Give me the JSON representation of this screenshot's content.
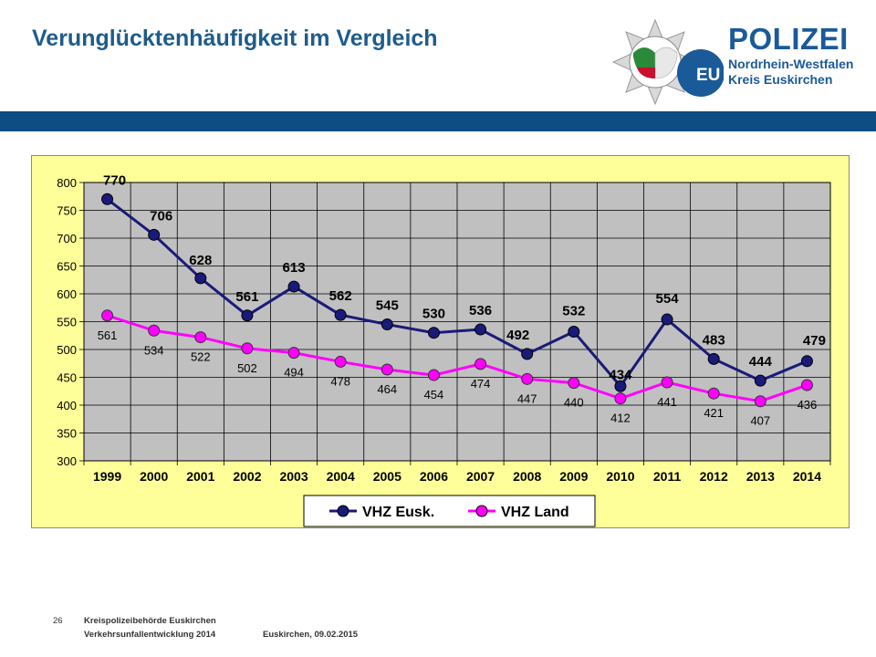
{
  "slide": {
    "title": "Verunglücktenhäufigkeit im Vergleich"
  },
  "logo": {
    "brand": "POLIZEI",
    "line1": "Nordrhein-Westfalen",
    "line2": "Kreis Euskirchen",
    "emblem_text": "EU"
  },
  "colors": {
    "title": "#1f5c8b",
    "header_bar": "#0e4c84",
    "chart_background": "#ffff99",
    "plot_background": "#c0c0c0",
    "series_eusk": "#1a1a7a",
    "series_land": "#ff00ff"
  },
  "chart_data": {
    "type": "line",
    "categories": [
      "1999",
      "2000",
      "2001",
      "2002",
      "2003",
      "2004",
      "2005",
      "2006",
      "2007",
      "2008",
      "2009",
      "2010",
      "2011",
      "2012",
      "2013",
      "2014"
    ],
    "series": [
      {
        "name": "VHZ Eusk.",
        "values": [
          770,
          706,
          628,
          561,
          613,
          562,
          545,
          530,
          536,
          492,
          532,
          434,
          554,
          483,
          444,
          479
        ]
      },
      {
        "name": "VHZ Land",
        "values": [
          561,
          534,
          522,
          502,
          494,
          478,
          464,
          454,
          474,
          447,
          440,
          412,
          441,
          421,
          407,
          436
        ]
      }
    ],
    "ylim": [
      300,
      800
    ],
    "yticks": [
      300,
      350,
      400,
      450,
      500,
      550,
      600,
      650,
      700,
      750,
      800
    ],
    "grid": true,
    "legend": "bottom-center"
  },
  "footer": {
    "page_number": "26",
    "line1": "Kreispolizeibehörde Euskirchen",
    "line2": "Verkehrsunfallentwicklung 2014",
    "date": "Euskirchen, 09.02.2015"
  }
}
